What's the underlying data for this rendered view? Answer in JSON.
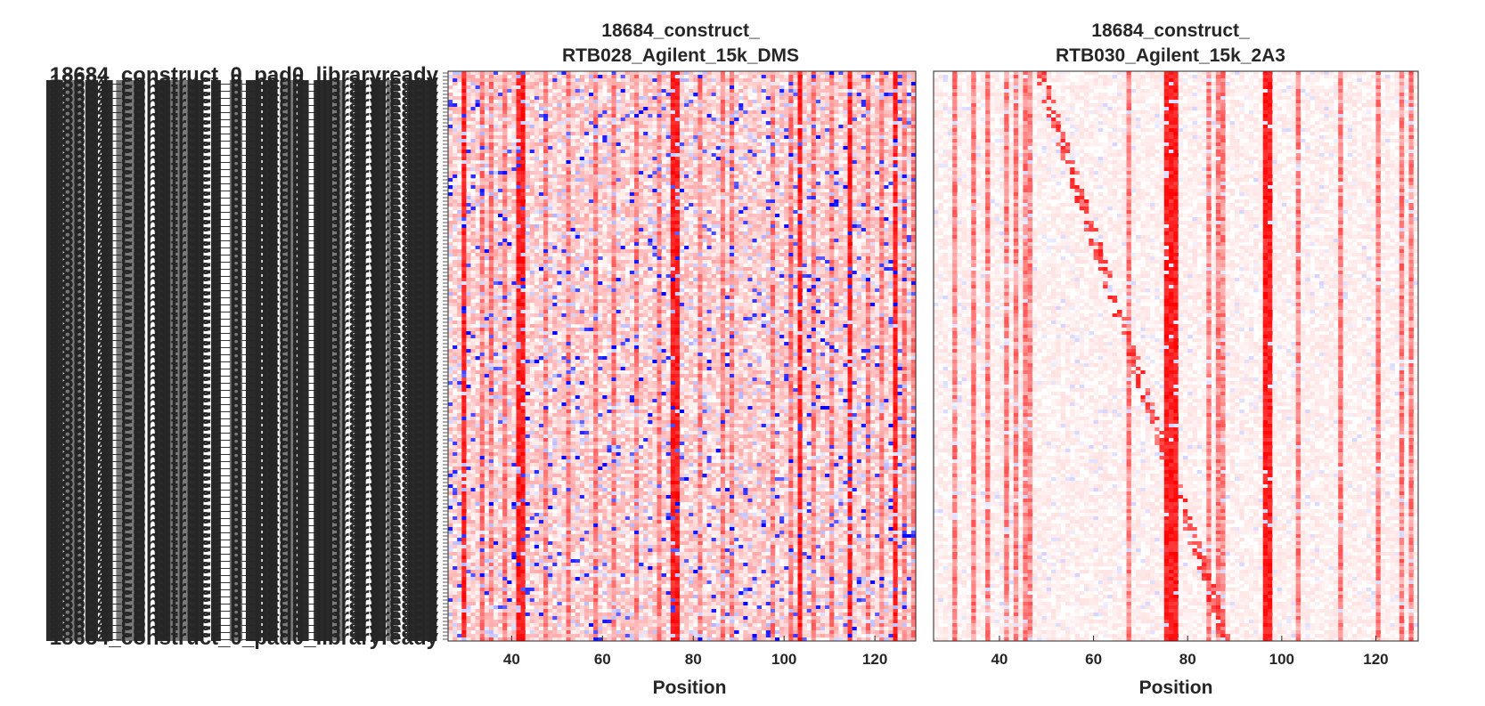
{
  "chart_data": [
    {
      "type": "heatmap",
      "title_line1": "18684_construct_",
      "title_line2": "RTB028_Agilent_15k_DMS",
      "xlabel": "Position",
      "xlim": [
        26,
        129
      ],
      "xticks": [
        40,
        60,
        80,
        100,
        120
      ],
      "color_scale": "blue-white-red",
      "strong_columns": [
        29,
        41,
        42,
        75,
        76,
        103,
        114,
        124
      ],
      "medium_columns": [
        33,
        35,
        38,
        47,
        52,
        58,
        62,
        67,
        72,
        81,
        86,
        88,
        97,
        101,
        106,
        110,
        118,
        121,
        126,
        128
      ]
    },
    {
      "type": "heatmap",
      "title_line1": "18684_construct_",
      "title_line2": "RTB030_Agilent_15k_2A3",
      "xlabel": "Position",
      "xlim": [
        26,
        129
      ],
      "xticks": [
        40,
        60,
        80,
        100,
        120
      ],
      "color_scale": "blue-white-red",
      "strong_columns": [
        75,
        76,
        77,
        96,
        97
      ],
      "medium_columns": [
        30,
        34,
        37,
        41,
        43,
        45,
        46,
        67,
        84,
        86,
        87,
        103,
        112,
        120,
        125,
        127
      ]
    }
  ],
  "y_axis": {
    "labels_legible": false,
    "label_text": "18684_construct_0_pad0_libraryready"
  },
  "colors": {
    "positive": "#ff0000",
    "negative": "#0000ff",
    "zero": "#ffffff",
    "text": "#262626"
  }
}
